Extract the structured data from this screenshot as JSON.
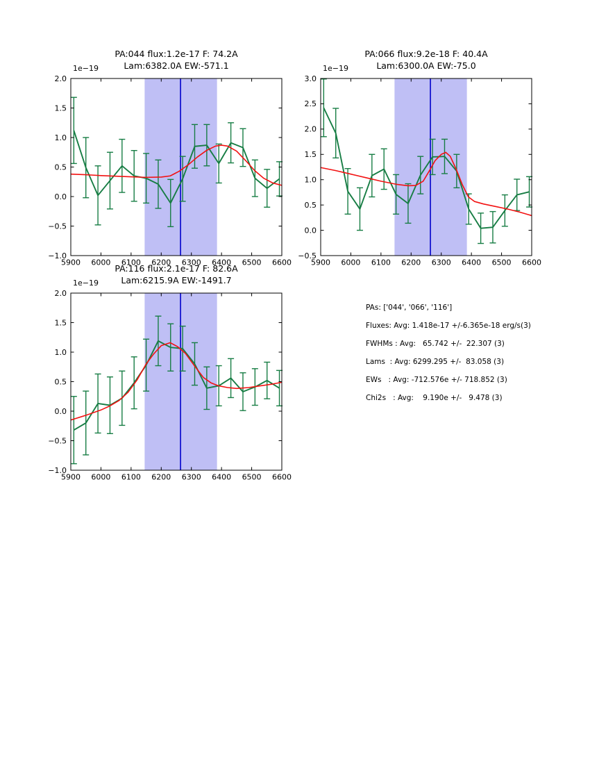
{
  "colors": {
    "background": "#ffffff",
    "data_line": "#177d44",
    "fit_line": "#f21111",
    "band_fill": "#bfbff5",
    "center_line": "#0000cc",
    "axis": "#000000"
  },
  "stats_panel": {
    "lines": [
      "PAs: ['044', '066', '116']",
      "Fluxes: Avg: 1.418e-17 +/-6.365e-18 erg/s(3)",
      "FWHMs : Avg:   65.742 +/-  22.307 (3)",
      "Lams  : Avg: 6299.295 +/-  83.058 (3)",
      "EWs   : Avg: -712.576e +/- 718.852 (3)",
      "Chi2s   : Avg:    9.190e +/-   9.478 (3)"
    ]
  },
  "chart_data": [
    {
      "id": "pa044",
      "type": "line",
      "title": "PA:044 flux:1.2e-17 F: 74.2A",
      "subtitle": "Lam:6382.0A EW:-571.1",
      "y_offset_label": "1e−19",
      "xlim": [
        5900,
        6600
      ],
      "ylim": [
        -1.0,
        2.0
      ],
      "xticks": [
        5900,
        6000,
        6100,
        6200,
        6300,
        6400,
        6500,
        6600
      ],
      "yticks": [
        -1.0,
        -0.5,
        0.0,
        0.5,
        1.0,
        1.5,
        2.0
      ],
      "grid": false,
      "legend": "none",
      "band_x": [
        6145,
        6385
      ],
      "vline_x": 6264,
      "series": [
        {
          "name": "spectrum-with-errorbars",
          "x": [
            5910,
            5950,
            5990,
            6030,
            6070,
            6110,
            6150,
            6190,
            6231,
            6271,
            6311,
            6351,
            6391,
            6431,
            6471,
            6511,
            6551,
            6592
          ],
          "y": [
            1.12,
            0.49,
            0.02,
            0.27,
            0.52,
            0.35,
            0.31,
            0.21,
            -0.11,
            0.3,
            0.85,
            0.87,
            0.56,
            0.91,
            0.83,
            0.31,
            0.14,
            0.3
          ],
          "yerr": [
            0.56,
            0.51,
            0.5,
            0.48,
            0.45,
            0.43,
            0.42,
            0.41,
            0.4,
            0.38,
            0.37,
            0.35,
            0.33,
            0.34,
            0.32,
            0.31,
            0.32,
            0.29
          ]
        },
        {
          "name": "gaussian-fit",
          "x": [
            5900,
            5950,
            6000,
            6050,
            6100,
            6150,
            6200,
            6230,
            6260,
            6290,
            6320,
            6350,
            6380,
            6400,
            6420,
            6450,
            6480,
            6510,
            6540,
            6570,
            6600
          ],
          "y": [
            0.38,
            0.37,
            0.355,
            0.345,
            0.335,
            0.325,
            0.33,
            0.35,
            0.43,
            0.54,
            0.67,
            0.78,
            0.855,
            0.87,
            0.855,
            0.77,
            0.61,
            0.44,
            0.31,
            0.23,
            0.19
          ]
        }
      ]
    },
    {
      "id": "pa066",
      "type": "line",
      "title": "PA:066 flux:9.2e-18 F: 40.4A",
      "subtitle": "Lam:6300.0A EW:-75.0",
      "y_offset_label": "1e−19",
      "xlim": [
        5900,
        6600
      ],
      "ylim": [
        -0.5,
        3.0
      ],
      "xticks": [
        5900,
        6000,
        6100,
        6200,
        6300,
        6400,
        6500,
        6600
      ],
      "yticks": [
        -0.5,
        0.0,
        0.5,
        1.0,
        1.5,
        2.0,
        2.5,
        3.0
      ],
      "grid": false,
      "legend": "none",
      "band_x": [
        6145,
        6385
      ],
      "vline_x": 6264,
      "series": [
        {
          "name": "spectrum-with-errorbars",
          "x": [
            5910,
            5950,
            5990,
            6030,
            6070,
            6110,
            6150,
            6190,
            6231,
            6271,
            6311,
            6351,
            6391,
            6431,
            6471,
            6511,
            6551,
            6592
          ],
          "y": [
            2.42,
            1.92,
            0.77,
            0.42,
            1.08,
            1.21,
            0.71,
            0.53,
            1.09,
            1.45,
            1.46,
            1.17,
            0.42,
            0.04,
            0.06,
            0.39,
            0.7,
            0.76
          ],
          "yerr": [
            0.57,
            0.49,
            0.45,
            0.42,
            0.42,
            0.4,
            0.39,
            0.39,
            0.37,
            0.35,
            0.34,
            0.33,
            0.3,
            0.3,
            0.31,
            0.31,
            0.31,
            0.3
          ]
        },
        {
          "name": "gaussian-fit",
          "x": [
            5900,
            5950,
            6000,
            6050,
            6100,
            6150,
            6190,
            6215,
            6240,
            6260,
            6280,
            6300,
            6315,
            6330,
            6350,
            6370,
            6390,
            6410,
            6440,
            6480,
            6520,
            6560,
            6600
          ],
          "y": [
            1.24,
            1.18,
            1.11,
            1.04,
            0.97,
            0.91,
            0.88,
            0.885,
            0.97,
            1.17,
            1.38,
            1.5,
            1.54,
            1.46,
            1.2,
            0.9,
            0.66,
            0.57,
            0.52,
            0.47,
            0.42,
            0.36,
            0.29
          ]
        }
      ]
    },
    {
      "id": "pa116",
      "type": "line",
      "title": "PA:116 flux:2.1e-17 F: 82.6A",
      "subtitle": "Lam:6215.9A EW:-1491.7",
      "y_offset_label": "1e−19",
      "xlim": [
        5900,
        6600
      ],
      "ylim": [
        -1.0,
        2.0
      ],
      "xticks": [
        5900,
        6000,
        6100,
        6200,
        6300,
        6400,
        6500,
        6600
      ],
      "yticks": [
        -1.0,
        -0.5,
        0.0,
        0.5,
        1.0,
        1.5,
        2.0
      ],
      "grid": false,
      "legend": "none",
      "band_x": [
        6145,
        6385
      ],
      "vline_x": 6264,
      "series": [
        {
          "name": "spectrum-with-errorbars",
          "x": [
            5910,
            5950,
            5990,
            6030,
            6070,
            6110,
            6150,
            6190,
            6231,
            6271,
            6311,
            6351,
            6391,
            6431,
            6471,
            6511,
            6551,
            6592
          ],
          "y": [
            -0.32,
            -0.2,
            0.13,
            0.1,
            0.22,
            0.48,
            0.78,
            1.19,
            1.08,
            1.06,
            0.8,
            0.39,
            0.43,
            0.56,
            0.33,
            0.41,
            0.52,
            0.39
          ],
          "yerr": [
            0.57,
            0.54,
            0.5,
            0.48,
            0.46,
            0.44,
            0.44,
            0.42,
            0.4,
            0.38,
            0.36,
            0.36,
            0.34,
            0.33,
            0.32,
            0.31,
            0.31,
            0.3
          ]
        },
        {
          "name": "gaussian-fit",
          "x": [
            5900,
            5950,
            6000,
            6030,
            6060,
            6090,
            6120,
            6150,
            6175,
            6200,
            6230,
            6255,
            6280,
            6310,
            6340,
            6365,
            6390,
            6420,
            6450,
            6490,
            6530,
            6570,
            6600
          ],
          "y": [
            -0.15,
            -0.07,
            0.02,
            0.09,
            0.18,
            0.32,
            0.53,
            0.8,
            0.97,
            1.11,
            1.16,
            1.09,
            0.98,
            0.77,
            0.57,
            0.48,
            0.43,
            0.4,
            0.385,
            0.4,
            0.43,
            0.46,
            0.49
          ]
        }
      ]
    }
  ]
}
